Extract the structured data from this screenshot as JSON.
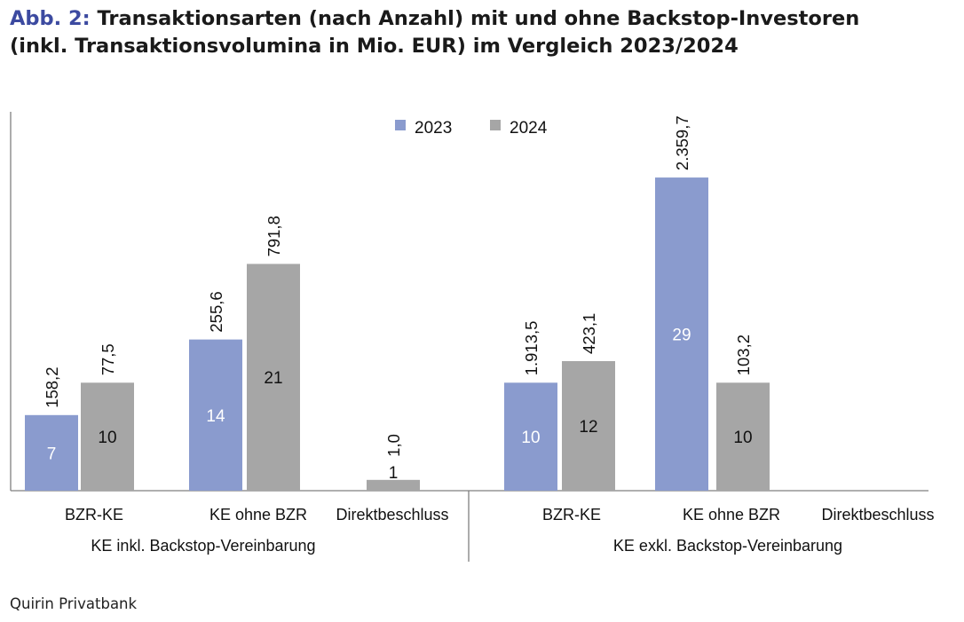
{
  "header": {
    "prefix": "Abb. 2:",
    "title_line1": "Transaktionsarten (nach Anzahl) mit und ohne Backstop-Investoren",
    "title_line2": "(inkl. Transaktionsvolumina in Mio. EUR) im Vergleich 2023/2024"
  },
  "source": "Quirin Privatbank",
  "colors": {
    "2023": "#8a9bce",
    "2024": "#a6a6a6"
  },
  "chart_data": {
    "type": "bar",
    "series": [
      {
        "name": "2023",
        "counts": [
          7,
          14,
          null,
          10,
          29,
          null
        ],
        "volumes": [
          "158,2",
          "255,6",
          null,
          "1.913,5",
          "2.359,7",
          null
        ]
      },
      {
        "name": "2024",
        "counts": [
          10,
          21,
          1,
          12,
          10,
          null
        ],
        "volumes": [
          "77,5",
          "791,8",
          "1,0",
          "423,1",
          "103,2",
          null
        ]
      }
    ],
    "categories": [
      "BZR-KE",
      "KE ohne BZR",
      "Direktbeschluss",
      "BZR-KE",
      "KE ohne BZR",
      "Direktbeschluss"
    ],
    "groups": [
      "KE inkl. Backstop-Vereinbarung",
      "KE exkl. Backstop-Vereinbarung"
    ],
    "group_of_category": [
      0,
      0,
      0,
      1,
      1,
      1
    ],
    "ylim": [
      0,
      31
    ],
    "legend": "top-center",
    "grid": false
  }
}
